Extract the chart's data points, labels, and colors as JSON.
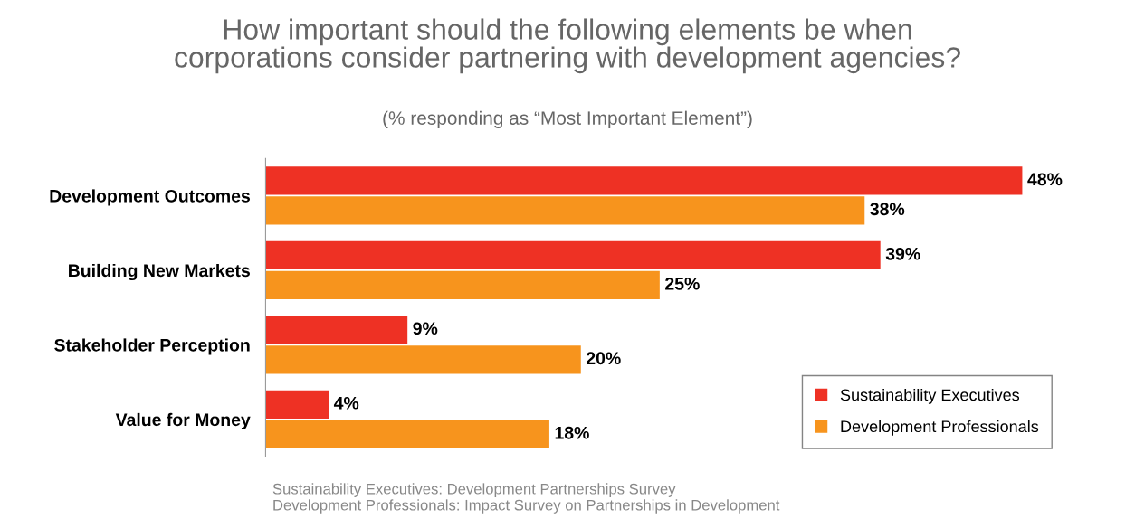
{
  "chart_data": {
    "type": "bar",
    "orientation": "horizontal",
    "title": "How important should the following elements be when\ncorporations consider partnering with development agencies?",
    "subtitle": "(% responding as “Most Important Element”)",
    "categories": [
      "Development Outcomes",
      "Building New Markets",
      "Stakeholder Perception",
      "Value for Money"
    ],
    "series": [
      {
        "name": "Sustainability Executives",
        "color": "#ee3124",
        "values": [
          48,
          39,
          9,
          4
        ],
        "value_labels": [
          "48%",
          "39%",
          "9%",
          "4%"
        ]
      },
      {
        "name": "Development Professionals",
        "color": "#f7941d",
        "values": [
          38,
          25,
          20,
          18
        ],
        "value_labels": [
          "38%",
          "25%",
          "20%",
          "18%"
        ]
      }
    ],
    "legend": "bottom right",
    "grid": false,
    "annotations": [
      "Sustainability Executives: Development Partnerships Survey\nDevelopment Professionals: Impact Survey on Partnerships in Development"
    ]
  }
}
